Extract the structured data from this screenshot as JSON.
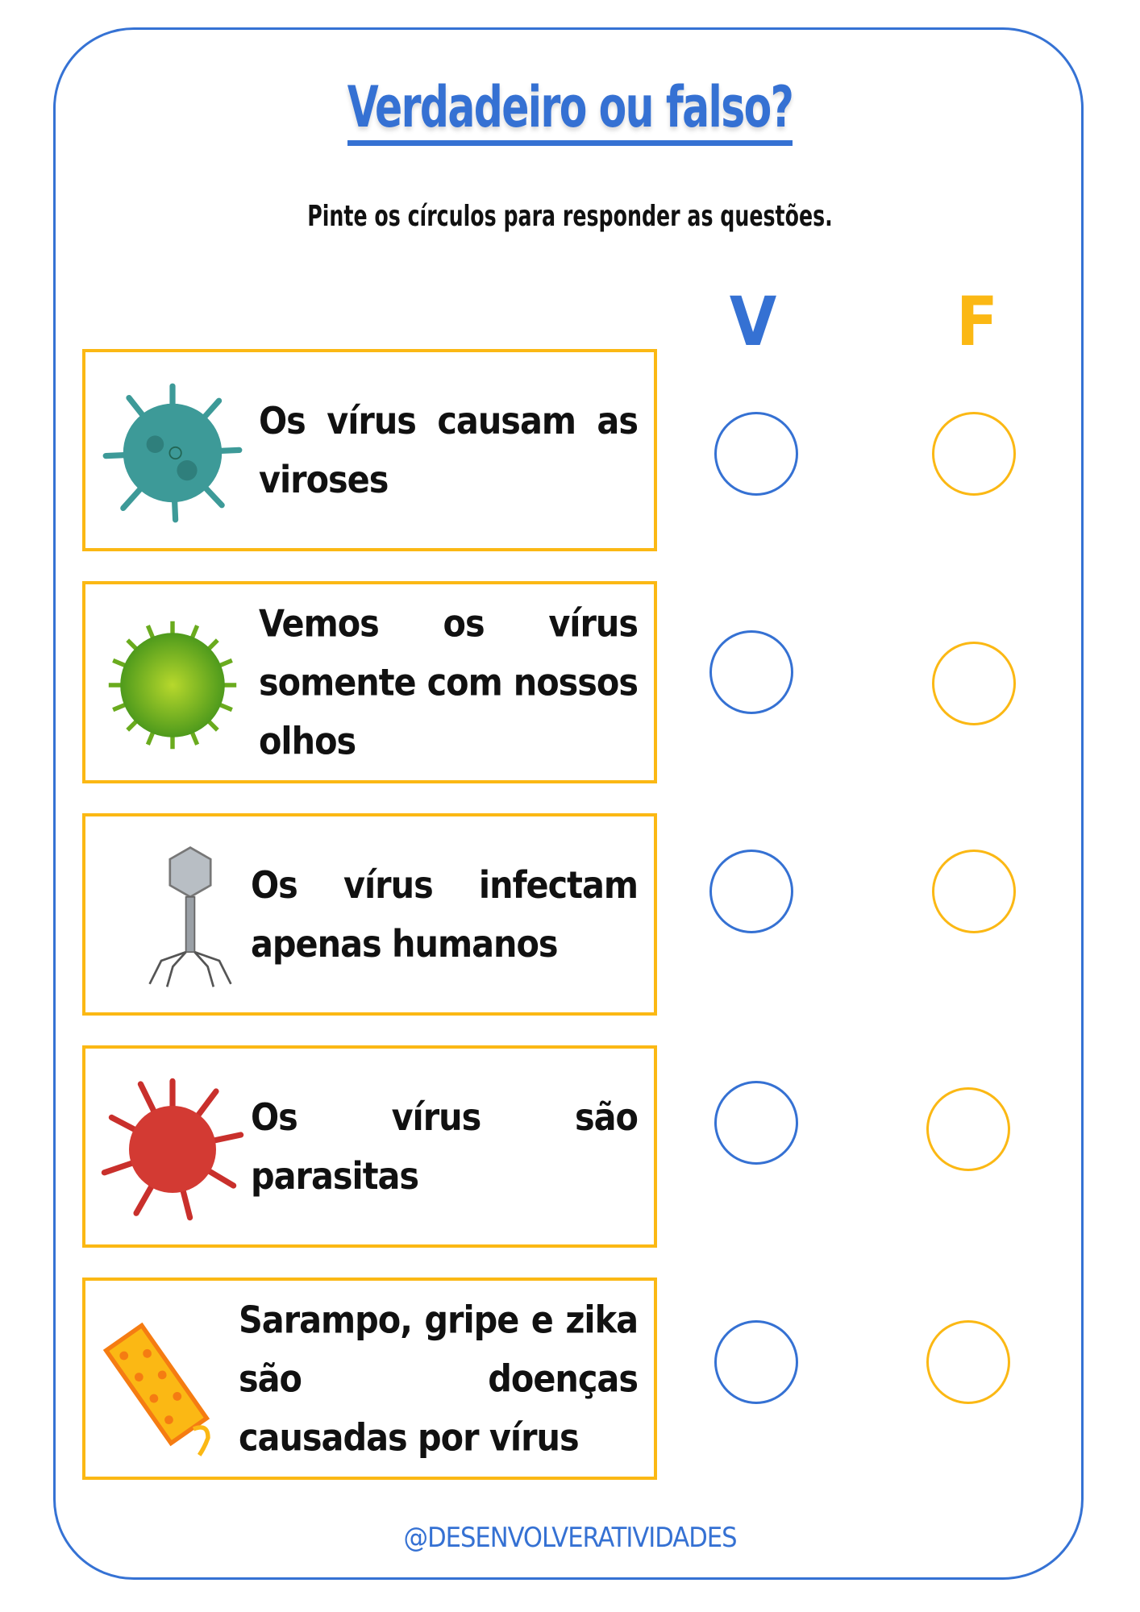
{
  "title": "Verdadeiro ou falso?",
  "subtitle": "Pinte os círculos para responder as questões.",
  "columns": {
    "true_label": "V",
    "false_label": "F"
  },
  "colors": {
    "blue": "#3571d3",
    "yellow": "#fbb814"
  },
  "questions": [
    {
      "text": "Os vírus causam as viroses",
      "icon": "teal-virus-icon"
    },
    {
      "text": "Vemos os vírus somente com nossos olhos",
      "icon": "green-virus-icon"
    },
    {
      "text": "Os vírus infectam apenas humanos",
      "icon": "bacteriophage-icon"
    },
    {
      "text": "Os vírus são parasitas",
      "icon": "red-coronavirus-icon"
    },
    {
      "text": "Sarampo, gripe e zika são doenças causadas por vírus",
      "icon": "rod-virus-icon"
    }
  ],
  "footer": "@DESENVOLVERATIVIDADES"
}
